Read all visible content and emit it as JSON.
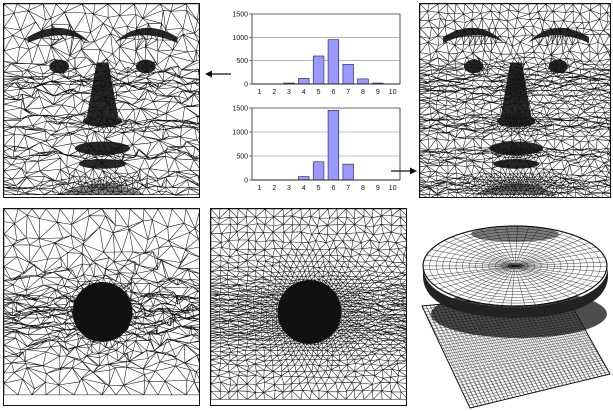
{
  "figure": {
    "panels": [
      {
        "id": "face-left",
        "content": "face-triangle-mesh"
      },
      {
        "id": "face-right",
        "content": "face-triangle-mesh-refined"
      },
      {
        "id": "disc-mesh-irregular",
        "content": "radial-density-triangle-mesh"
      },
      {
        "id": "disc-mesh-regular",
        "content": "radial-density-triangle-mesh-smoothed"
      },
      {
        "id": "surface-3d",
        "content": "mesh-with-lifted-elliptical-disc"
      }
    ],
    "arrows": [
      {
        "id": "arrow-to-left",
        "direction": "left"
      },
      {
        "id": "arrow-to-right",
        "direction": "right"
      }
    ],
    "colors": {
      "mesh_line": "#111111",
      "bar_fill": "#9999ff",
      "bar_stroke": "#333366",
      "grid": "#888888"
    }
  },
  "chart_data": [
    {
      "type": "bar",
      "categories": [
        "1",
        "2",
        "3",
        "4",
        "5",
        "6",
        "7",
        "8",
        "9",
        "10"
      ],
      "values": [
        0,
        0,
        20,
        120,
        600,
        950,
        420,
        110,
        20,
        0
      ],
      "yticks": [
        "0",
        "500",
        "1000",
        "1500"
      ],
      "ylim": [
        0,
        1500
      ],
      "grid": true,
      "title": "",
      "xlabel": "",
      "ylabel": ""
    },
    {
      "type": "bar",
      "categories": [
        "1",
        "2",
        "3",
        "4",
        "5",
        "6",
        "7",
        "8",
        "9",
        "10"
      ],
      "values": [
        0,
        0,
        0,
        70,
        380,
        1450,
        330,
        0,
        0,
        0
      ],
      "yticks": [
        "0",
        "500",
        "1000",
        "1500"
      ],
      "ylim": [
        0,
        1500
      ],
      "grid": true,
      "title": "",
      "xlabel": "",
      "ylabel": ""
    }
  ]
}
